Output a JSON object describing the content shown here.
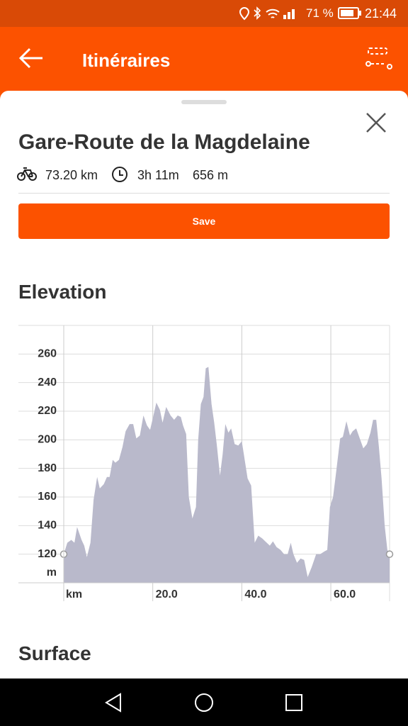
{
  "status_bar": {
    "battery": "71 %",
    "time": "21:44"
  },
  "app_bar": {
    "title": "Itinéraires"
  },
  "route": {
    "name": "Gare-Route de la Magdelaine",
    "distance": "73.20 km",
    "duration": "3h 11m",
    "elevation_gain": "656 m"
  },
  "save_button": "Save",
  "sections": {
    "elevation": "Elevation",
    "surface": "Surface"
  },
  "chart_data": {
    "type": "area",
    "x_label": "km",
    "y_label": "m",
    "color": "#b9b9cb",
    "x": [
      0,
      0.8,
      1.7,
      2.4,
      3.0,
      4.0,
      4.6,
      5.2,
      6.0,
      6.7,
      7.5,
      8.1,
      9.0,
      9.7,
      10.3,
      11.0,
      11.6,
      12.4,
      13.2,
      13.9,
      14.8,
      15.6,
      16.3,
      17.1,
      17.9,
      18.7,
      19.4,
      20.0,
      20.8,
      21.6,
      22.2,
      23.0,
      24.0,
      24.8,
      25.6,
      26.3,
      26.8,
      27.5,
      28.1,
      28.9,
      29.7,
      30.2,
      30.8,
      31.4,
      31.9,
      32.5,
      33.2,
      33.8,
      34.4,
      35.1,
      35.7,
      36.3,
      37.0,
      37.6,
      38.4,
      39.2,
      40.0,
      40.6,
      41.3,
      42.1,
      42.9,
      43.7,
      44.6,
      45.6,
      46.3,
      47.0,
      47.8,
      48.7,
      49.5,
      50.3,
      51.0,
      51.6,
      52.4,
      53.2,
      54.0,
      54.8,
      55.7,
      56.7,
      57.6,
      58.6,
      59.2,
      59.8,
      60.5,
      61.1,
      62.1,
      62.7,
      63.5,
      64.3,
      64.9,
      65.7,
      66.5,
      67.3,
      68.1,
      68.9,
      69.5,
      70.2,
      70.8,
      71.4,
      72.1,
      72.7,
      73.2
    ],
    "values": [
      120,
      128,
      130,
      128,
      139,
      130,
      126,
      118,
      128,
      158,
      174,
      166,
      169,
      174,
      174,
      186,
      184,
      186,
      195,
      206,
      211,
      211,
      201,
      203,
      217,
      210,
      207,
      215,
      226,
      221,
      212,
      223,
      217,
      214,
      217,
      216,
      210,
      204,
      160,
      145,
      153,
      200,
      225,
      230,
      250,
      251,
      225,
      212,
      196,
      175,
      190,
      211,
      205,
      208,
      197,
      196,
      199,
      187,
      173,
      168,
      128,
      133,
      131,
      128,
      126,
      129,
      125,
      123,
      120,
      120,
      128,
      120,
      114,
      117,
      116,
      104,
      111,
      120,
      120,
      122,
      123,
      153,
      160,
      175,
      201,
      202,
      213,
      203,
      206,
      208,
      201,
      194,
      197,
      205,
      214,
      214,
      195,
      173,
      140,
      123,
      120
    ],
    "xlim": [
      0,
      73.2
    ],
    "ylim": [
      100,
      280
    ],
    "xticks": [
      {
        "value": 20,
        "label": "20.0"
      },
      {
        "value": 40,
        "label": "40.0"
      },
      {
        "value": 60,
        "label": "60.0"
      }
    ],
    "yticks": [
      120,
      140,
      160,
      180,
      200,
      220,
      240,
      260
    ],
    "grid": true
  }
}
